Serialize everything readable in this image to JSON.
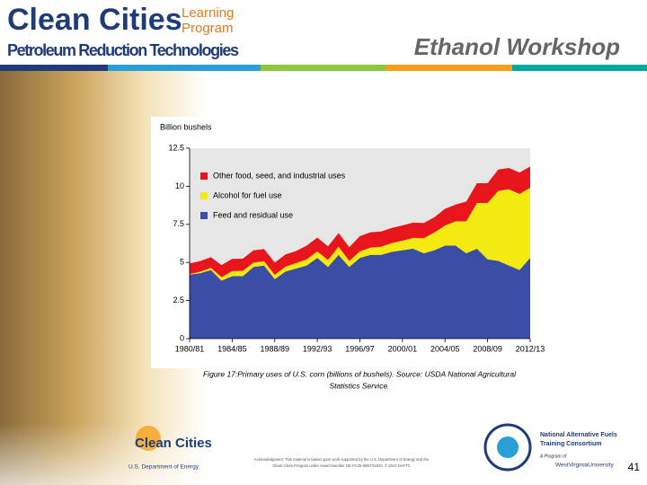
{
  "header": {
    "brand": "Clean Cities",
    "program_line1": "Learning",
    "program_line2": "Program",
    "subtitle": "Petroleum Reduction Technologies",
    "workshop": "Ethanol Workshop"
  },
  "chart_data": {
    "type": "stacked_area",
    "y_label": "Billion bushels",
    "categories": [
      "1980/81",
      null,
      null,
      null,
      "1984/85",
      null,
      null,
      null,
      "1988/89",
      null,
      null,
      null,
      "1992/93",
      null,
      null,
      null,
      "1996/97",
      null,
      null,
      null,
      "2000/01",
      null,
      null,
      null,
      "2004/05",
      null,
      null,
      null,
      "2008/09",
      null,
      null,
      null,
      "2012/13"
    ],
    "series": [
      {
        "name": "Feed and residual use",
        "color": "#3a4ea6",
        "values": [
          4.2,
          4.3,
          4.5,
          3.8,
          4.1,
          4.1,
          4.7,
          4.8,
          3.9,
          4.4,
          4.6,
          4.8,
          5.3,
          4.7,
          5.5,
          4.7,
          5.3,
          5.5,
          5.5,
          5.7,
          5.8,
          5.9,
          5.6,
          5.8,
          6.1,
          6.1,
          5.6,
          5.9,
          5.2,
          5.1,
          4.8,
          4.5,
          5.3
        ]
      },
      {
        "name": "Alcohol for fuel use",
        "color": "#f3ea12",
        "values": [
          0.03,
          0.09,
          0.14,
          0.23,
          0.33,
          0.35,
          0.29,
          0.28,
          0.29,
          0.32,
          0.35,
          0.4,
          0.43,
          0.46,
          0.53,
          0.4,
          0.43,
          0.48,
          0.53,
          0.57,
          0.63,
          0.71,
          0.99,
          1.17,
          1.32,
          1.6,
          2.1,
          3.0,
          3.7,
          4.6,
          5.0,
          5.0,
          4.6
        ]
      },
      {
        "name": "Other food, seed, and industrial uses",
        "color": "#e8161c",
        "values": [
          0.7,
          0.7,
          0.7,
          0.8,
          0.8,
          0.8,
          0.8,
          0.8,
          0.8,
          0.8,
          0.8,
          0.9,
          0.9,
          0.9,
          0.9,
          0.9,
          1.0,
          1.0,
          1.0,
          1.0,
          1.0,
          1.0,
          1.0,
          1.0,
          1.1,
          1.1,
          1.3,
          1.3,
          1.3,
          1.4,
          1.4,
          1.4,
          1.4
        ]
      }
    ],
    "ylim": [
      0,
      12.5
    ],
    "yticks": [
      0,
      2.5,
      5,
      7.5,
      10,
      12.5
    ],
    "legend": "upper left",
    "plot_background": "#e6e6e6"
  },
  "caption": {
    "line1": "Figure 17:Primary uses of U.S. corn (billions of bushels). Source: USDA National Agricultural",
    "line2": "Statistics Service."
  },
  "footer": {
    "logo_name": "Clean Cities",
    "logo_agency": "U.S. Department of Energy",
    "ack1": "Acknowledgment: This material is based upon work supported by the U.S. Department of Energy and the",
    "ack2": "Clean Cities Program under Award Number DE-FC26-08NT01926. © 2012 NAFTC",
    "naftc1": "National Alternative Fuels",
    "naftc2": "Training Consortium",
    "program_of": "A Program of",
    "university": "WestVirginiaUniversity",
    "page": "41"
  }
}
